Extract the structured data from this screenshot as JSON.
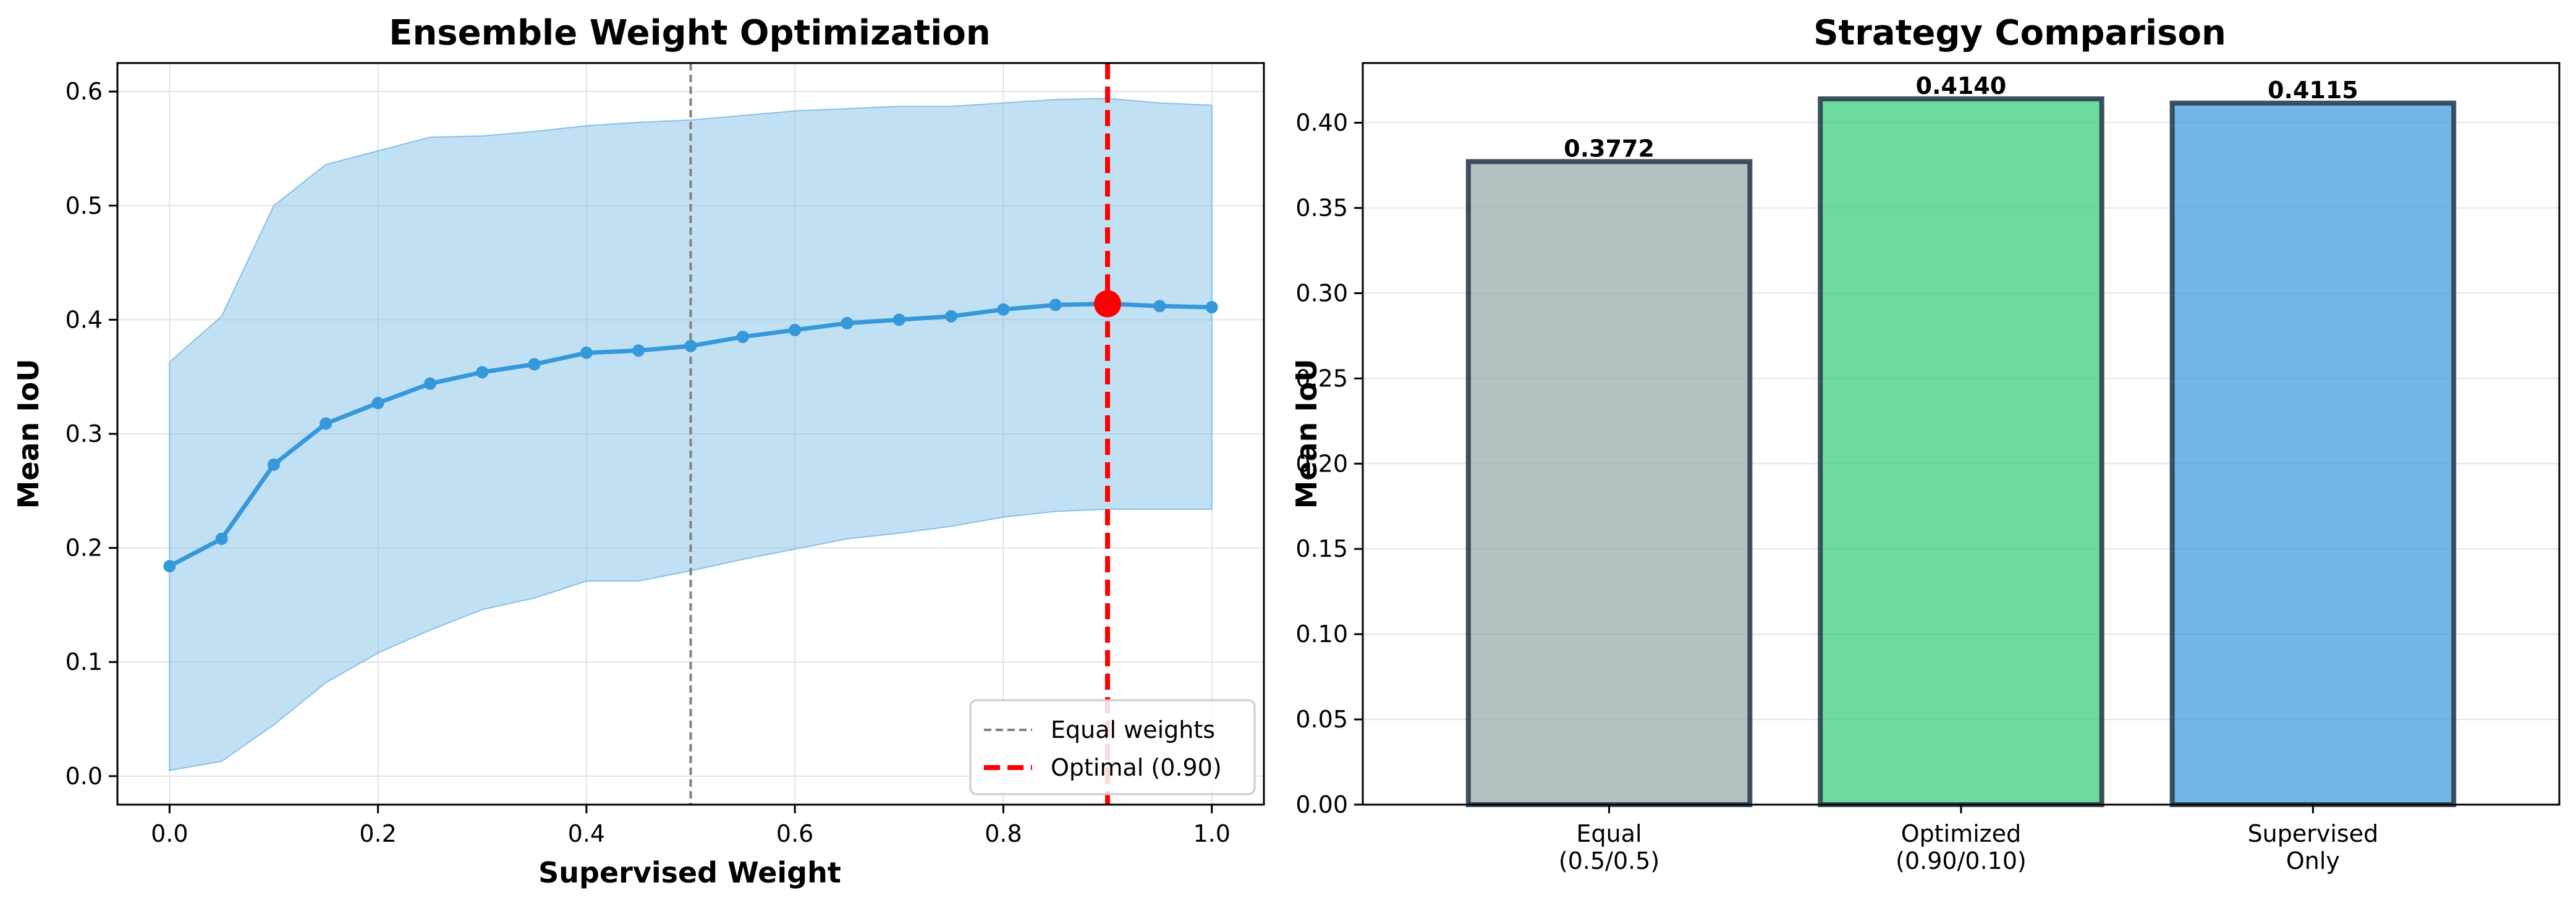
{
  "chart_data": [
    {
      "type": "line",
      "title": "Ensemble Weight Optimization",
      "xlabel": "Supervised Weight",
      "ylabel": "Mean IoU",
      "xlim": [
        -0.05,
        1.05
      ],
      "ylim": [
        -0.025,
        0.625
      ],
      "xticks": [
        0.0,
        0.2,
        0.4,
        0.6,
        0.8,
        1.0
      ],
      "xtick_labels": [
        "0.0",
        "0.2",
        "0.4",
        "0.6",
        "0.8",
        "1.0"
      ],
      "yticks": [
        0.0,
        0.1,
        0.2,
        0.3,
        0.4,
        0.5,
        0.6
      ],
      "ytick_labels": [
        "0.0",
        "0.1",
        "0.2",
        "0.3",
        "0.4",
        "0.5",
        "0.6"
      ],
      "grid": true,
      "x": [
        0.0,
        0.05,
        0.1,
        0.15,
        0.2,
        0.25,
        0.3,
        0.35,
        0.4,
        0.45,
        0.5,
        0.55,
        0.6,
        0.65,
        0.7,
        0.75,
        0.8,
        0.85,
        0.9,
        0.95,
        1.0
      ],
      "series": [
        {
          "values": [
            0.184,
            0.208,
            0.273,
            0.309,
            0.327,
            0.344,
            0.354,
            0.361,
            0.371,
            0.373,
            0.377,
            0.385,
            0.391,
            0.397,
            0.4,
            0.403,
            0.409,
            0.413,
            0.414,
            0.412,
            0.411
          ],
          "lower": [
            0.005,
            0.013,
            0.045,
            0.082,
            0.108,
            0.128,
            0.146,
            0.156,
            0.171,
            0.171,
            0.18,
            0.19,
            0.199,
            0.208,
            0.213,
            0.219,
            0.227,
            0.232,
            0.234,
            0.234,
            0.234
          ],
          "upper": [
            0.363,
            0.403,
            0.5,
            0.536,
            0.548,
            0.56,
            0.561,
            0.565,
            0.57,
            0.573,
            0.575,
            0.579,
            0.583,
            0.585,
            0.587,
            0.587,
            0.59,
            0.593,
            0.594,
            0.59,
            0.588
          ],
          "color": "#3498db",
          "band_color": "#85c1e9"
        }
      ],
      "vlines": [
        {
          "x": 0.5,
          "label": "Equal weights",
          "color": "#808080",
          "style": "dashed"
        },
        {
          "x": 0.9,
          "label": "Optimal (0.90)",
          "color": "#ff0000",
          "style": "dashed"
        }
      ],
      "highlight_point": {
        "x": 0.9,
        "y": 0.414,
        "color": "#ff0000"
      },
      "legend_position": "lower-right"
    },
    {
      "type": "bar",
      "title": "Strategy Comparison",
      "xlabel": "",
      "ylabel": "Mean IoU",
      "categories": [
        [
          "Equal",
          "(0.5/0.5)"
        ],
        [
          "Optimized",
          "(0.90/0.10)"
        ],
        [
          "Supervised",
          "Only"
        ]
      ],
      "values": [
        0.3772,
        0.414,
        0.4115
      ],
      "value_labels": [
        "0.3772",
        "0.4140",
        "0.4115"
      ],
      "colors": [
        "#95a5a6",
        "#2ecc71",
        "#3498db"
      ],
      "ylim": [
        0.0,
        0.435
      ],
      "yticks": [
        0.0,
        0.05,
        0.1,
        0.15,
        0.2,
        0.25,
        0.3,
        0.35,
        0.4
      ],
      "ytick_labels": [
        "0.00",
        "0.05",
        "0.10",
        "0.15",
        "0.20",
        "0.25",
        "0.30",
        "0.35",
        "0.40"
      ],
      "grid": "y"
    }
  ]
}
